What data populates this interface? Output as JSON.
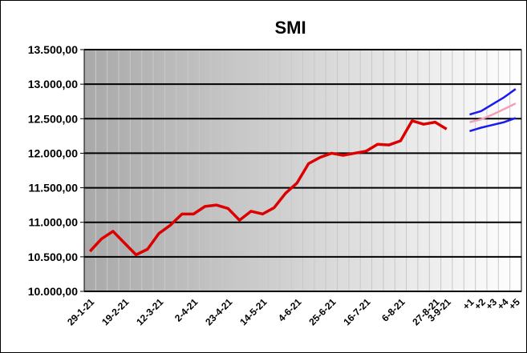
{
  "chart_data": {
    "type": "line",
    "title": "SMI",
    "categories": [
      "29-1-21",
      null,
      null,
      "19-2-21",
      null,
      null,
      "12-3-21",
      null,
      null,
      "2-4-21",
      null,
      null,
      "23-4-21",
      null,
      null,
      "14-5-21",
      null,
      null,
      "4-6-21",
      null,
      null,
      "25-6-21",
      null,
      null,
      "16-7-21",
      null,
      null,
      "6-8-21",
      null,
      null,
      "27-8-21",
      "3-9-21",
      null,
      "+1",
      "+2",
      "+3",
      "+4",
      "+5"
    ],
    "series": [
      {
        "color": "#dd0000",
        "values": [
          10580,
          10760,
          10870,
          10700,
          10530,
          10610,
          10840,
          10960,
          11120,
          11120,
          11230,
          11250,
          11200,
          11030,
          11160,
          11120,
          11210,
          11420,
          11570,
          11850,
          11940,
          12000,
          11970,
          12000,
          12030,
          12130,
          12120,
          12180,
          12470,
          12420,
          12450,
          12350,
          null,
          null,
          null,
          null,
          null,
          null
        ]
      },
      {
        "color": "#1a1aee",
        "values": [
          null,
          null,
          null,
          null,
          null,
          null,
          null,
          null,
          null,
          null,
          null,
          null,
          null,
          null,
          null,
          null,
          null,
          null,
          null,
          null,
          null,
          null,
          null,
          null,
          null,
          null,
          null,
          null,
          null,
          null,
          null,
          null,
          null,
          12560,
          12610,
          12710,
          12810,
          12930
        ]
      },
      {
        "color": "#1a1aee",
        "values": [
          null,
          null,
          null,
          null,
          null,
          null,
          null,
          null,
          null,
          null,
          null,
          null,
          null,
          null,
          null,
          null,
          null,
          null,
          null,
          null,
          null,
          null,
          null,
          null,
          null,
          null,
          null,
          null,
          null,
          null,
          null,
          null,
          null,
          12320,
          12370,
          12410,
          12450,
          12510
        ]
      },
      {
        "color": "#f2a0b8",
        "values": [
          null,
          null,
          null,
          null,
          null,
          null,
          null,
          null,
          null,
          null,
          null,
          null,
          null,
          null,
          null,
          null,
          null,
          null,
          null,
          null,
          null,
          null,
          null,
          null,
          null,
          null,
          null,
          null,
          null,
          null,
          null,
          null,
          null,
          12450,
          12490,
          12560,
          12640,
          12720
        ]
      }
    ],
    "ylim": [
      10000,
      13500
    ],
    "yticks": [
      {
        "value": 10000,
        "label": "10.000,00"
      },
      {
        "value": 10500,
        "label": "10.500,00"
      },
      {
        "value": 11000,
        "label": "11.000,00"
      },
      {
        "value": 11500,
        "label": "11.500,00"
      },
      {
        "value": 12000,
        "label": "12.000,00"
      },
      {
        "value": 12500,
        "label": "12.500,00"
      },
      {
        "value": 13000,
        "label": "13.000,00"
      },
      {
        "value": 13500,
        "label": "13.500,00"
      }
    ],
    "grid": true
  }
}
